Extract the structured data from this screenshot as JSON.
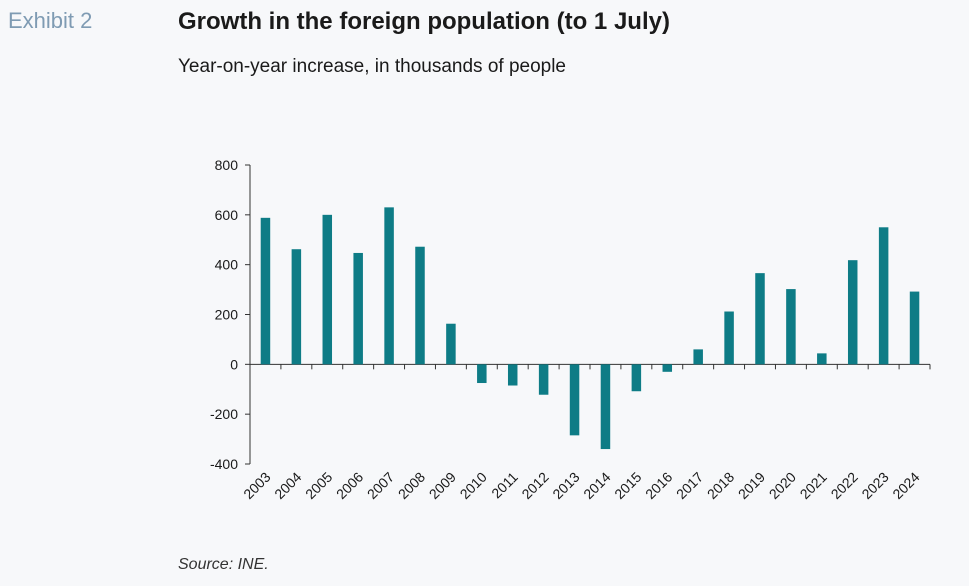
{
  "exhibit_label": "Exhibit 2",
  "title": "Growth in the foreign population (to 1 July)",
  "subtitle": "Year-on-year increase, in thousands of people",
  "source": "Source: INE.",
  "chart_data": {
    "type": "bar",
    "categories": [
      "2003",
      "2004",
      "2005",
      "2006",
      "2007",
      "2008",
      "2009",
      "2010",
      "2011",
      "2012",
      "2013",
      "2014",
      "2015",
      "2016",
      "2017",
      "2018",
      "2019",
      "2020",
      "2021",
      "2022",
      "2023",
      "2024"
    ],
    "values": [
      588,
      462,
      600,
      447,
      630,
      472,
      163,
      -75,
      -85,
      -122,
      -285,
      -340,
      -108,
      -30,
      60,
      212,
      366,
      302,
      44,
      418,
      550,
      292
    ],
    "ylim": [
      -400,
      800
    ],
    "yticks": [
      -400,
      -200,
      0,
      200,
      400,
      600,
      800
    ],
    "grid": false,
    "bar_color": "#0e7c86"
  }
}
